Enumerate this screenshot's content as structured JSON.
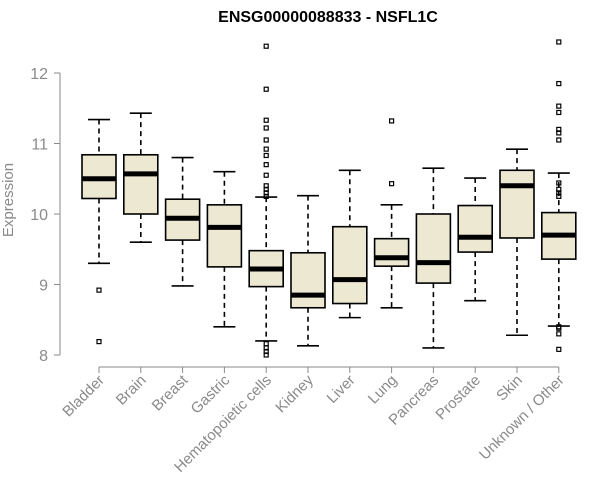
{
  "chart_data": {
    "type": "box",
    "title": "ENSG00000088833 - NSFL1C",
    "ylabel": "Expression",
    "xlabel": "",
    "ylim": [
      7.9,
      12.6
    ],
    "yticks": [
      8,
      9,
      10,
      11,
      12
    ],
    "categories": [
      "Bladder",
      "Brain",
      "Breast",
      "Gastric",
      "Hematopoietic cells",
      "Kidney",
      "Liver",
      "Lung",
      "Pancreas",
      "Prostate",
      "Skin",
      "Unknown / Other"
    ],
    "boxes": [
      {
        "name": "Bladder",
        "whisker_low": 9.3,
        "q1": 10.22,
        "median": 10.5,
        "q3": 10.84,
        "whisker_high": 11.34,
        "outliers": [
          8.92,
          8.19
        ]
      },
      {
        "name": "Brain",
        "whisker_low": 9.6,
        "q1": 10.0,
        "median": 10.57,
        "q3": 10.84,
        "whisker_high": 11.43,
        "outliers": []
      },
      {
        "name": "Breast",
        "whisker_low": 8.98,
        "q1": 9.63,
        "median": 9.94,
        "q3": 10.21,
        "whisker_high": 10.8,
        "outliers": []
      },
      {
        "name": "Gastric",
        "whisker_low": 8.4,
        "q1": 9.25,
        "median": 9.81,
        "q3": 10.13,
        "whisker_high": 10.6,
        "outliers": []
      },
      {
        "name": "Hematopoietic cells",
        "whisker_low": 8.2,
        "q1": 8.97,
        "median": 9.22,
        "q3": 9.48,
        "whisker_high": 10.24,
        "outliers": [
          12.38,
          11.77,
          11.33,
          11.22,
          11.05,
          10.92,
          10.83,
          10.7,
          10.55,
          10.4,
          10.35,
          10.3,
          10.25,
          8.16,
          8.1,
          8.05,
          8.0
        ]
      },
      {
        "name": "Kidney",
        "whisker_low": 8.13,
        "q1": 8.67,
        "median": 8.85,
        "q3": 9.45,
        "whisker_high": 10.26,
        "outliers": []
      },
      {
        "name": "Liver",
        "whisker_low": 8.53,
        "q1": 8.73,
        "median": 9.07,
        "q3": 9.82,
        "whisker_high": 10.62,
        "outliers": []
      },
      {
        "name": "Lung",
        "whisker_low": 8.67,
        "q1": 9.26,
        "median": 9.38,
        "q3": 9.65,
        "whisker_high": 10.13,
        "outliers": [
          11.32,
          10.43
        ]
      },
      {
        "name": "Pancreas",
        "whisker_low": 8.1,
        "q1": 9.02,
        "median": 9.31,
        "q3": 10.0,
        "whisker_high": 10.65,
        "outliers": []
      },
      {
        "name": "Prostate",
        "whisker_low": 8.77,
        "q1": 9.46,
        "median": 9.67,
        "q3": 10.12,
        "whisker_high": 10.51,
        "outliers": []
      },
      {
        "name": "Skin",
        "whisker_low": 8.28,
        "q1": 9.66,
        "median": 10.4,
        "q3": 10.62,
        "whisker_high": 10.92,
        "outliers": []
      },
      {
        "name": "Unknown / Other",
        "whisker_low": 8.41,
        "q1": 9.36,
        "median": 9.7,
        "q3": 10.02,
        "whisker_high": 10.58,
        "outliers": [
          12.44,
          11.85,
          11.53,
          11.44,
          11.2,
          11.15,
          11.05,
          10.44,
          10.35,
          10.3,
          10.25,
          8.4,
          8.38,
          8.3,
          8.08
        ]
      }
    ]
  }
}
